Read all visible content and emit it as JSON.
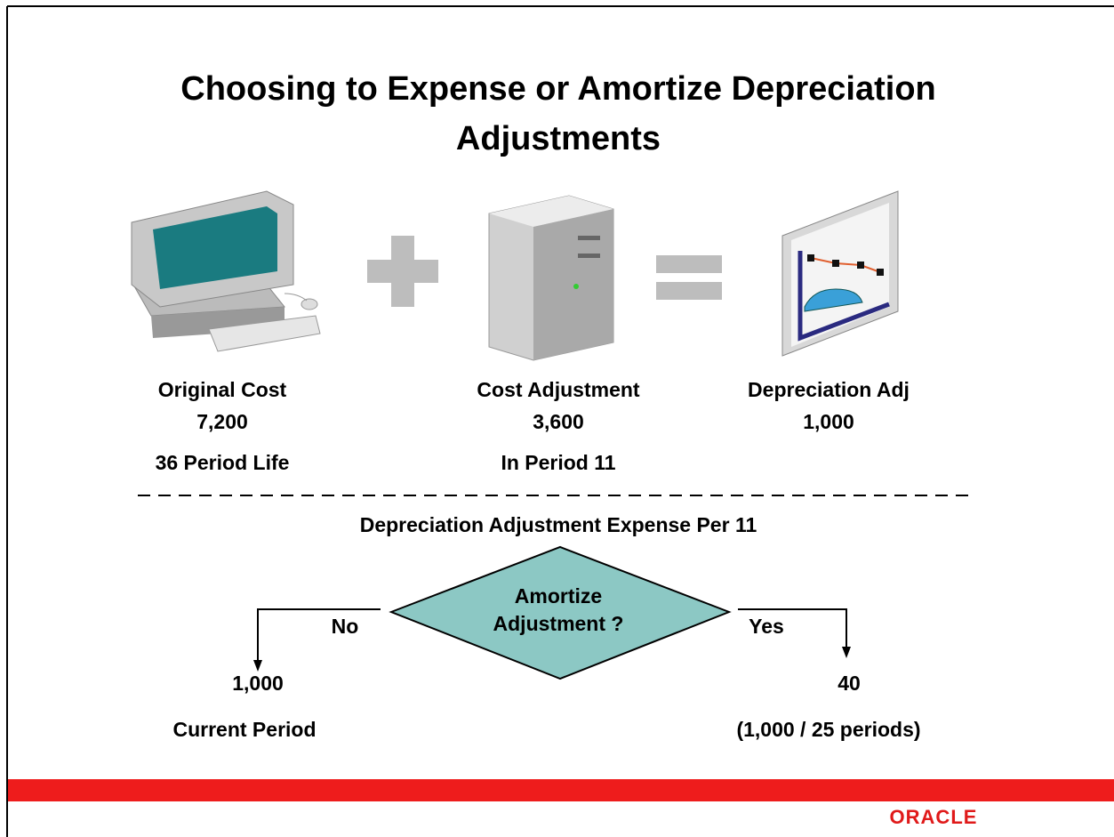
{
  "header": {
    "title_lines": [
      "Choosing to Expense or Amortize Depreciation",
      "Adjustments"
    ]
  },
  "items": [
    {
      "label": "Original Cost",
      "value": "7,200",
      "note": "36 Period Life"
    },
    {
      "label": "Cost Adjustment",
      "value": "3,600",
      "note": "In Period 11"
    },
    {
      "label": "Depreciation Adj",
      "value": "1,000"
    }
  ],
  "section_title": "Depreciation Adjustment Expense Per 11",
  "decision": {
    "question_lines": [
      "Amortize",
      "Adjustment ?"
    ],
    "no": {
      "label": "No",
      "value": "1,000",
      "note": "Current Period"
    },
    "yes": {
      "label": "Yes",
      "value": "40",
      "note": "(1,000 / 25 periods)"
    }
  },
  "footer": {
    "logo": "ORACLE"
  }
}
